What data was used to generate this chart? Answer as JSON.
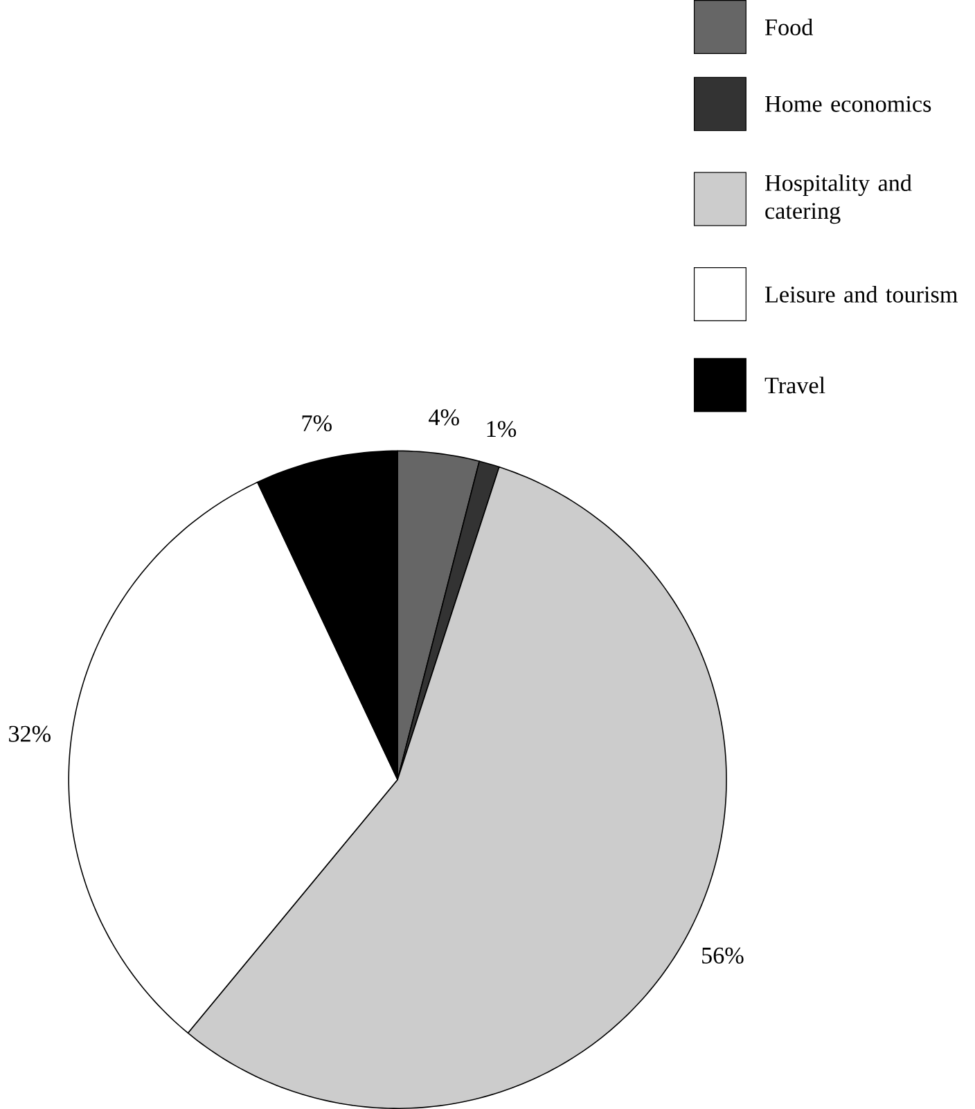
{
  "chart_data": {
    "type": "pie",
    "categories": [
      "Food",
      "Home economics",
      "Hospitality and catering",
      "Leisure and tourism",
      "Travel"
    ],
    "values": [
      4,
      1,
      56,
      32,
      7
    ],
    "value_labels": [
      "4%",
      "1%",
      "56%",
      "32%",
      "7%"
    ],
    "colors": [
      "#666666",
      "#333333",
      "#cccccc",
      "#ffffff",
      "#000000"
    ],
    "legend": "top right"
  }
}
